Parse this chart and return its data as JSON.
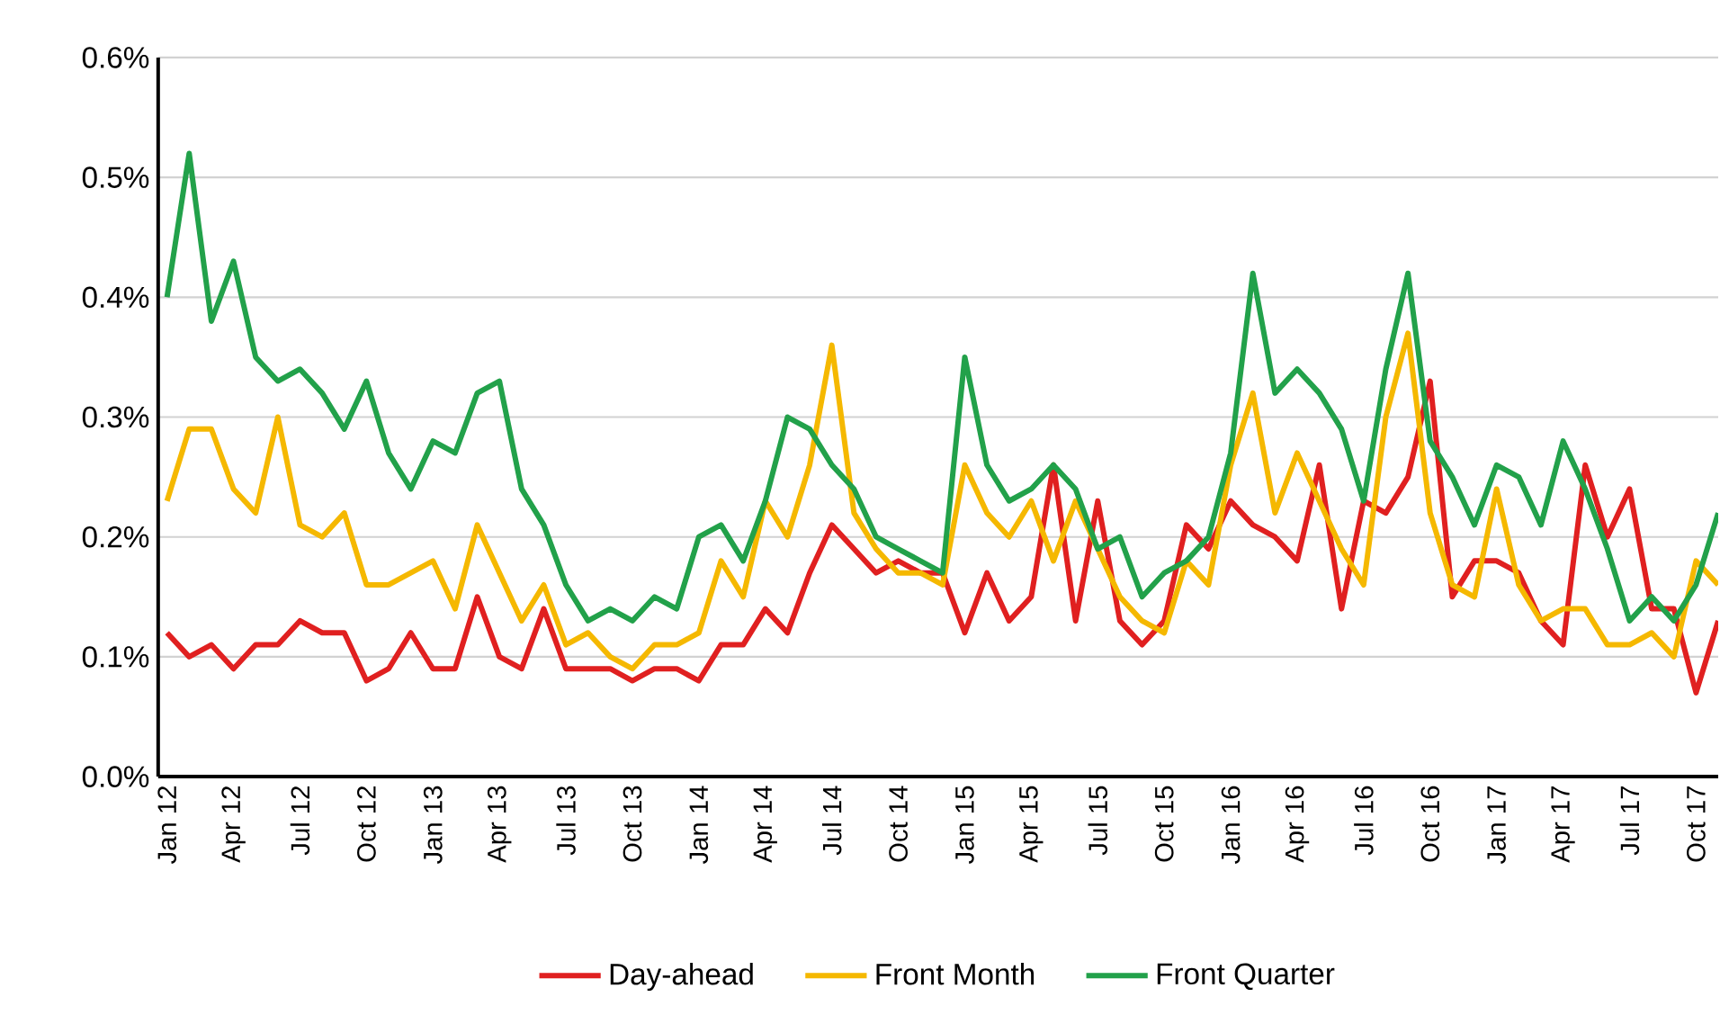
{
  "chart_data": {
    "type": "line",
    "categories": [
      "Jan 12",
      null,
      null,
      "Apr 12",
      null,
      null,
      "Jul 12",
      null,
      null,
      "Oct 12",
      null,
      null,
      "Jan 13",
      null,
      null,
      "Apr 13",
      null,
      null,
      "Jul 13",
      null,
      null,
      "Oct 13",
      null,
      null,
      "Jan 14",
      null,
      null,
      "Apr 14",
      null,
      null,
      "Jul 14",
      null,
      null,
      "Oct 14",
      null,
      null,
      "Jan 15",
      null,
      null,
      "Apr 15",
      null,
      null,
      "Jul 15",
      null,
      null,
      "Oct 15",
      null,
      null,
      "Jan 16",
      null,
      null,
      "Apr 16",
      null,
      null,
      "Jul 16",
      null,
      null,
      "Oct 16",
      null,
      null,
      "Jan 17",
      null,
      null,
      "Apr 17",
      null,
      null,
      "Jul 17",
      null,
      null,
      "Oct 17",
      null
    ],
    "series": [
      {
        "name": "Day-ahead",
        "color": "#e02020",
        "values": [
          0.12,
          0.1,
          0.11,
          0.09,
          0.11,
          0.11,
          0.13,
          0.12,
          0.12,
          0.08,
          0.09,
          0.12,
          0.09,
          0.09,
          0.15,
          0.1,
          0.09,
          0.14,
          0.09,
          0.09,
          0.09,
          0.08,
          0.09,
          0.09,
          0.08,
          0.11,
          0.11,
          0.14,
          0.12,
          0.17,
          0.21,
          0.19,
          0.17,
          0.18,
          0.17,
          0.17,
          0.12,
          0.17,
          0.13,
          0.15,
          0.26,
          0.13,
          0.23,
          0.13,
          0.11,
          0.13,
          0.21,
          0.19,
          0.23,
          0.21,
          0.2,
          0.18,
          0.26,
          0.14,
          0.23,
          0.22,
          0.25,
          0.33,
          0.15,
          0.18,
          0.18,
          0.17,
          0.13,
          0.11,
          0.26,
          0.2,
          0.24,
          0.14,
          0.14,
          0.07,
          0.13
        ]
      },
      {
        "name": "Front Month",
        "color": "#f5b800",
        "values": [
          0.23,
          0.29,
          0.29,
          0.24,
          0.22,
          0.3,
          0.21,
          0.2,
          0.22,
          0.16,
          0.16,
          0.17,
          0.18,
          0.14,
          0.21,
          0.17,
          0.13,
          0.16,
          0.11,
          0.12,
          0.1,
          0.09,
          0.11,
          0.11,
          0.12,
          0.18,
          0.15,
          0.23,
          0.2,
          0.26,
          0.36,
          0.22,
          0.19,
          0.17,
          0.17,
          0.16,
          0.26,
          0.22,
          0.2,
          0.23,
          0.18,
          0.23,
          0.19,
          0.15,
          0.13,
          0.12,
          0.18,
          0.16,
          0.26,
          0.32,
          0.22,
          0.27,
          0.23,
          0.19,
          0.16,
          0.3,
          0.37,
          0.22,
          0.16,
          0.15,
          0.24,
          0.16,
          0.13,
          0.14,
          0.14,
          0.11,
          0.11,
          0.12,
          0.1,
          0.18,
          0.16
        ]
      },
      {
        "name": "Front Quarter",
        "color": "#22a14a",
        "values": [
          0.4,
          0.52,
          0.38,
          0.43,
          0.35,
          0.33,
          0.34,
          0.32,
          0.29,
          0.33,
          0.27,
          0.24,
          0.28,
          0.27,
          0.32,
          0.33,
          0.24,
          0.21,
          0.16,
          0.13,
          0.14,
          0.13,
          0.15,
          0.14,
          0.2,
          0.21,
          0.18,
          0.23,
          0.3,
          0.29,
          0.26,
          0.24,
          0.2,
          0.19,
          0.18,
          0.17,
          0.35,
          0.26,
          0.23,
          0.24,
          0.26,
          0.24,
          0.19,
          0.2,
          0.15,
          0.17,
          0.18,
          0.2,
          0.27,
          0.42,
          0.32,
          0.34,
          0.32,
          0.29,
          0.23,
          0.34,
          0.42,
          0.28,
          0.25,
          0.21,
          0.26,
          0.25,
          0.21,
          0.28,
          0.24,
          0.19,
          0.13,
          0.15,
          0.13,
          0.16,
          0.22
        ]
      }
    ],
    "ylim": [
      0,
      0.6
    ],
    "yticks": [
      {
        "value": 0,
        "label": "0.0%"
      },
      {
        "value": 0.1,
        "label": "0.1%"
      },
      {
        "value": 0.2,
        "label": "0.2%"
      },
      {
        "value": 0.3,
        "label": "0.3%"
      },
      {
        "value": 0.4,
        "label": "0.4%"
      },
      {
        "value": 0.5,
        "label": "0.5%"
      },
      {
        "value": 0.6,
        "label": "0.6%"
      }
    ],
    "grid": "y",
    "legend": "bottom",
    "line_style": "solid"
  }
}
